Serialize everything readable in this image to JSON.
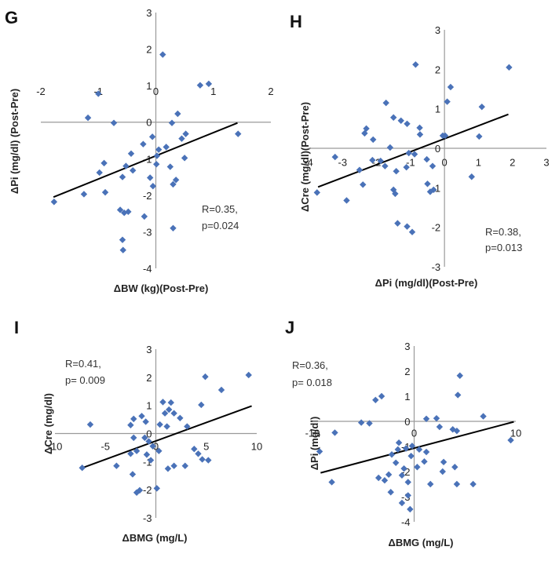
{
  "chart_data": [
    {
      "panel": "G",
      "type": "scatter",
      "xlabel": "ΔBW (kg)(Post-Pre)",
      "ylabel": "ΔPi (mg/dl) (Post-Pre)",
      "xlim": [
        -2,
        2
      ],
      "ylim": [
        -4,
        3
      ],
      "x_ticks": [
        -2,
        -1,
        0,
        1,
        2
      ],
      "y_ticks": [
        -4,
        -3,
        -2,
        -1,
        0,
        1,
        2,
        3
      ],
      "annotation": [
        "R=0.35,",
        "p=0.024"
      ],
      "trendline": {
        "x": [
          -1.78,
          1.42
        ],
        "y": [
          -2.05,
          -0.02
        ]
      },
      "points": [
        {
          "x": 0.12,
          "y": 1.85
        },
        {
          "x": 0.92,
          "y": 1.05
        },
        {
          "x": 0.77,
          "y": 1.01
        },
        {
          "x": -1.0,
          "y": 0.78
        },
        {
          "x": -1.18,
          "y": 0.12
        },
        {
          "x": -0.73,
          "y": -0.02
        },
        {
          "x": 0.38,
          "y": 0.23
        },
        {
          "x": 0.28,
          "y": -0.02
        },
        {
          "x": -0.06,
          "y": -0.4
        },
        {
          "x": 0.45,
          "y": -0.45
        },
        {
          "x": 0.52,
          "y": -0.32
        },
        {
          "x": 1.43,
          "y": -0.32
        },
        {
          "x": -0.22,
          "y": -0.6
        },
        {
          "x": 0.05,
          "y": -0.75
        },
        {
          "x": 0.18,
          "y": -0.68
        },
        {
          "x": -0.43,
          "y": -0.86
        },
        {
          "x": 0.02,
          "y": -0.92
        },
        {
          "x": -0.9,
          "y": -1.12
        },
        {
          "x": -0.52,
          "y": -1.2
        },
        {
          "x": 0.5,
          "y": -0.98
        },
        {
          "x": 0.25,
          "y": -1.22
        },
        {
          "x": -0.98,
          "y": -1.38
        },
        {
          "x": -0.4,
          "y": -1.32
        },
        {
          "x": -0.58,
          "y": -1.5
        },
        {
          "x": -0.1,
          "y": -1.52
        },
        {
          "x": -0.05,
          "y": -1.75
        },
        {
          "x": 0.35,
          "y": -1.58
        },
        {
          "x": 0.3,
          "y": -1.7
        },
        {
          "x": -0.88,
          "y": -1.92
        },
        {
          "x": -1.25,
          "y": -1.97
        },
        {
          "x": -0.62,
          "y": -2.4
        },
        {
          "x": -0.55,
          "y": -2.48
        },
        {
          "x": -0.48,
          "y": -2.45
        },
        {
          "x": -0.2,
          "y": -2.58
        },
        {
          "x": -1.77,
          "y": -2.18
        },
        {
          "x": 0.3,
          "y": -2.9
        },
        {
          "x": -0.58,
          "y": -3.22
        },
        {
          "x": -0.57,
          "y": -3.5
        },
        {
          "x": 0.01,
          "y": -1.15
        }
      ]
    },
    {
      "panel": "H",
      "type": "scatter",
      "xlabel": "ΔPi (mg/dl)(Post-Pre)",
      "ylabel": "ΔCre (mg/dl)(Post-Pre)",
      "xlim": [
        -4,
        3
      ],
      "ylim": [
        -3,
        3
      ],
      "x_ticks": [
        -4,
        -3,
        -2,
        -1,
        0,
        1,
        2,
        3
      ],
      "y_ticks": [
        -3,
        -2,
        -1,
        0,
        1,
        2,
        3
      ],
      "annotation": [
        "R=0.38,",
        "p=0.013"
      ],
      "trendline": {
        "x": [
          -3.72,
          1.88
        ],
        "y": [
          -0.98,
          0.86
        ]
      },
      "points": [
        {
          "x": -0.85,
          "y": 2.12
        },
        {
          "x": 1.9,
          "y": 2.05
        },
        {
          "x": 0.18,
          "y": 1.55
        },
        {
          "x": 0.08,
          "y": 1.18
        },
        {
          "x": 1.1,
          "y": 1.05
        },
        {
          "x": -1.72,
          "y": 1.15
        },
        {
          "x": -1.5,
          "y": 0.78
        },
        {
          "x": -1.28,
          "y": 0.7
        },
        {
          "x": -1.1,
          "y": 0.62
        },
        {
          "x": -0.73,
          "y": 0.52
        },
        {
          "x": -0.72,
          "y": 0.35
        },
        {
          "x": -2.3,
          "y": 0.5
        },
        {
          "x": -2.35,
          "y": 0.38
        },
        {
          "x": -2.1,
          "y": 0.22
        },
        {
          "x": -0.05,
          "y": 0.32
        },
        {
          "x": 0.02,
          "y": 0.32
        },
        {
          "x": 1.02,
          "y": 0.3
        },
        {
          "x": -1.6,
          "y": 0.02
        },
        {
          "x": -1.05,
          "y": -0.12
        },
        {
          "x": -0.88,
          "y": -0.15
        },
        {
          "x": -0.52,
          "y": -0.28
        },
        {
          "x": -3.22,
          "y": -0.22
        },
        {
          "x": -2.12,
          "y": -0.3
        },
        {
          "x": -1.88,
          "y": -0.32
        },
        {
          "x": -1.75,
          "y": -0.45
        },
        {
          "x": -2.5,
          "y": -0.55
        },
        {
          "x": -1.42,
          "y": -0.58
        },
        {
          "x": -1.12,
          "y": -0.48
        },
        {
          "x": -0.35,
          "y": -0.45
        },
        {
          "x": -2.4,
          "y": -0.92
        },
        {
          "x": -0.5,
          "y": -0.9
        },
        {
          "x": -1.5,
          "y": -1.05
        },
        {
          "x": -0.32,
          "y": -1.05
        },
        {
          "x": -0.42,
          "y": -1.1
        },
        {
          "x": -1.45,
          "y": -1.15
        },
        {
          "x": -3.75,
          "y": -1.12
        },
        {
          "x": -2.88,
          "y": -1.32
        },
        {
          "x": -1.38,
          "y": -1.9
        },
        {
          "x": -1.1,
          "y": -1.98
        },
        {
          "x": -0.95,
          "y": -2.12
        },
        {
          "x": 0.8,
          "y": -0.72
        }
      ]
    },
    {
      "panel": "I",
      "type": "scatter",
      "xlabel": "ΔBMG (mg/L)",
      "ylabel": "ΔCre (mg/dl)",
      "xlim": [
        -10,
        10
      ],
      "ylim": [
        -3,
        3
      ],
      "x_ticks": [
        -10,
        -5,
        0,
        5,
        10
      ],
      "y_ticks": [
        -3,
        -2,
        -1,
        0,
        1,
        2,
        3
      ],
      "annotation": [
        "R=0.41,",
        "p= 0.009"
      ],
      "trendline": {
        "x": [
          -7.5,
          9.5
        ],
        "y": [
          -1.25,
          0.98
        ]
      },
      "points": [
        {
          "x": 9.2,
          "y": 2.08
        },
        {
          "x": 4.9,
          "y": 2.02
        },
        {
          "x": 6.5,
          "y": 1.55
        },
        {
          "x": 0.7,
          "y": 1.12
        },
        {
          "x": 1.5,
          "y": 1.1
        },
        {
          "x": 4.5,
          "y": 1.02
        },
        {
          "x": 1.3,
          "y": 0.85
        },
        {
          "x": 0.9,
          "y": 0.72
        },
        {
          "x": 1.8,
          "y": 0.72
        },
        {
          "x": 2.4,
          "y": 0.55
        },
        {
          "x": -1.4,
          "y": 0.62
        },
        {
          "x": -2.2,
          "y": 0.52
        },
        {
          "x": -1.0,
          "y": 0.42
        },
        {
          "x": 0.4,
          "y": 0.32
        },
        {
          "x": -6.5,
          "y": 0.32
        },
        {
          "x": -2.5,
          "y": 0.3
        },
        {
          "x": 1.1,
          "y": 0.25
        },
        {
          "x": 3.1,
          "y": 0.25
        },
        {
          "x": -1.1,
          "y": -0.15
        },
        {
          "x": -0.7,
          "y": -0.28
        },
        {
          "x": -0.3,
          "y": -0.45
        },
        {
          "x": 0.3,
          "y": -0.62
        },
        {
          "x": -1.9,
          "y": -0.62
        },
        {
          "x": -2.5,
          "y": -0.72
        },
        {
          "x": -0.9,
          "y": -0.75
        },
        {
          "x": 3.8,
          "y": -0.55
        },
        {
          "x": 4.2,
          "y": -0.72
        },
        {
          "x": -0.5,
          "y": -0.95
        },
        {
          "x": 1.8,
          "y": -1.15
        },
        {
          "x": 1.2,
          "y": -1.25
        },
        {
          "x": 2.9,
          "y": -1.15
        },
        {
          "x": 4.6,
          "y": -0.92
        },
        {
          "x": 5.2,
          "y": -0.95
        },
        {
          "x": -2.3,
          "y": -1.45
        },
        {
          "x": -3.9,
          "y": -1.15
        },
        {
          "x": -1.6,
          "y": -2.02
        },
        {
          "x": -1.9,
          "y": -2.1
        },
        {
          "x": 0.1,
          "y": -1.95
        },
        {
          "x": -7.3,
          "y": -1.22
        },
        {
          "x": -2.2,
          "y": -0.15
        }
      ]
    },
    {
      "panel": "J",
      "type": "scatter",
      "xlabel": "ΔBMG (mg/L)",
      "ylabel": "ΔPi (mg/dl)",
      "xlim": [
        -10,
        10
      ],
      "ylim": [
        -4,
        3
      ],
      "x_ticks": [
        -10,
        0,
        10
      ],
      "y_ticks": [
        -4,
        -3,
        -2,
        -1,
        0,
        1,
        2,
        3
      ],
      "annotation": [
        "R=0.36,",
        "p= 0.018"
      ],
      "trendline": {
        "x": [
          -9.2,
          9.8
        ],
        "y": [
          -2.05,
          -0.02
        ]
      },
      "points": [
        {
          "x": 4.5,
          "y": 1.82
        },
        {
          "x": 4.3,
          "y": 1.05
        },
        {
          "x": -3.2,
          "y": 1.0
        },
        {
          "x": -3.8,
          "y": 0.85
        },
        {
          "x": 1.2,
          "y": 0.1
        },
        {
          "x": 2.2,
          "y": 0.12
        },
        {
          "x": 6.8,
          "y": 0.2
        },
        {
          "x": -7.8,
          "y": -0.45
        },
        {
          "x": -5.2,
          "y": -0.05
        },
        {
          "x": -4.4,
          "y": -0.08
        },
        {
          "x": 2.5,
          "y": -0.22
        },
        {
          "x": 3.8,
          "y": -0.32
        },
        {
          "x": 4.2,
          "y": -0.38
        },
        {
          "x": 9.5,
          "y": -0.75
        },
        {
          "x": -1.5,
          "y": -0.85
        },
        {
          "x": -0.2,
          "y": -0.98
        },
        {
          "x": -1.6,
          "y": -1.12
        },
        {
          "x": -0.8,
          "y": -1.08
        },
        {
          "x": 0.5,
          "y": -1.12
        },
        {
          "x": 1.2,
          "y": -1.22
        },
        {
          "x": -2.2,
          "y": -1.32
        },
        {
          "x": -0.3,
          "y": -1.38
        },
        {
          "x": 1.0,
          "y": -1.6
        },
        {
          "x": -1.8,
          "y": -1.65
        },
        {
          "x": 2.9,
          "y": -1.62
        },
        {
          "x": 0.3,
          "y": -1.82
        },
        {
          "x": -1.0,
          "y": -1.88
        },
        {
          "x": 2.8,
          "y": -2.0
        },
        {
          "x": 4.0,
          "y": -1.82
        },
        {
          "x": -2.5,
          "y": -2.12
        },
        {
          "x": -3.5,
          "y": -2.25
        },
        {
          "x": -2.9,
          "y": -2.35
        },
        {
          "x": -1.2,
          "y": -2.15
        },
        {
          "x": -0.6,
          "y": -2.42
        },
        {
          "x": 1.6,
          "y": -2.5
        },
        {
          "x": 4.2,
          "y": -2.5
        },
        {
          "x": 5.8,
          "y": -2.5
        },
        {
          "x": -9.3,
          "y": -1.2
        },
        {
          "x": -8.1,
          "y": -2.42
        },
        {
          "x": -2.3,
          "y": -2.82
        },
        {
          "x": -0.6,
          "y": -2.95
        },
        {
          "x": -1.2,
          "y": -3.25
        },
        {
          "x": -0.4,
          "y": -3.5
        }
      ]
    }
  ]
}
